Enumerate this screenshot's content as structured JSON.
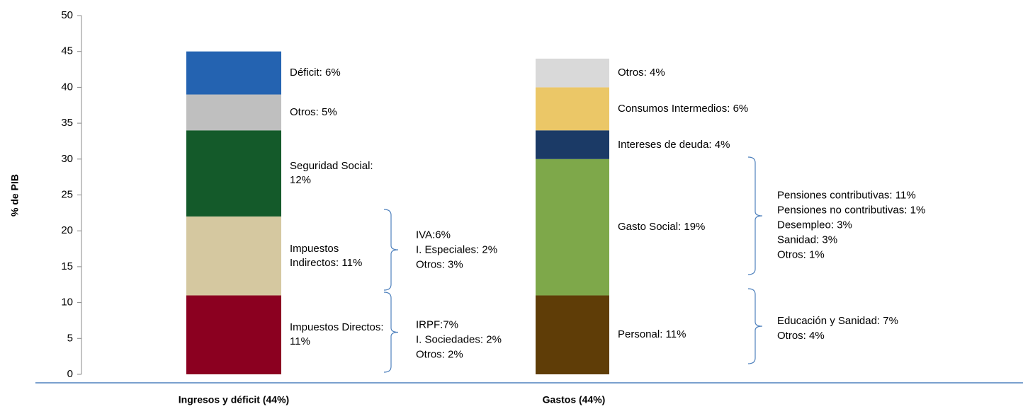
{
  "chart_data": {
    "type": "stacked_bar",
    "y_label": "% de PIB",
    "categories": [
      "Ingresos y déficit (44%)",
      "Gastos (44%)"
    ],
    "ylim": [
      0,
      50
    ],
    "yticks": [
      0,
      5,
      10,
      15,
      20,
      25,
      30,
      35,
      40,
      45,
      50
    ],
    "series": [
      {
        "color": "#8b0020",
        "values": [
          11,
          null
        ],
        "value_labels": [
          "Impuestos Directos: 11%",
          null
        ]
      },
      {
        "color": "#d5c8a0",
        "values": [
          11,
          null
        ],
        "value_labels": [
          "Impuestos Indirectos: 11%",
          null
        ]
      },
      {
        "color": "#145a2a",
        "values": [
          12,
          null
        ],
        "value_labels": [
          "Seguridad Social: 12%",
          null
        ]
      },
      {
        "color": "#bfbfbf",
        "values": [
          5,
          null
        ],
        "value_labels": [
          "Otros: 5%",
          null
        ]
      },
      {
        "color": "#2463b1",
        "values": [
          6,
          null
        ],
        "value_labels": [
          "Déficit: 6%",
          null
        ]
      },
      {
        "color": "#5f3d07",
        "values": [
          null,
          11
        ],
        "value_labels": [
          null,
          "Personal: 11%"
        ]
      },
      {
        "color": "#7ea84a",
        "values": [
          null,
          19
        ],
        "value_labels": [
          null,
          "Gasto Social: 19%"
        ]
      },
      {
        "color": "#1b3a66",
        "values": [
          null,
          4
        ],
        "value_labels": [
          null,
          "Intereses de deuda: 4%"
        ]
      },
      {
        "color": "#ebc767",
        "values": [
          null,
          6
        ],
        "value_labels": [
          null,
          "Consumos Intermedios: 6%"
        ]
      },
      {
        "color": "#d9d9d9",
        "values": [
          null,
          4
        ],
        "value_labels": [
          null,
          "Otros: 4%"
        ]
      }
    ],
    "annotations": [
      [
        "IVA:6%",
        "I. Especiales: 2%",
        "Otros: 3%"
      ],
      [
        "IRPF:7%",
        "I. Sociedades: 2%",
        "Otros: 2%"
      ],
      [
        "Pensiones  contributivas:  11%",
        "Pensiones no contributivas:  1%",
        "Desempleo:  3%",
        "Sanidad:  3%",
        "Otros:  1%"
      ],
      [
        "Educación y  Sanidad:  7%",
        "Otros:  4%"
      ]
    ]
  }
}
